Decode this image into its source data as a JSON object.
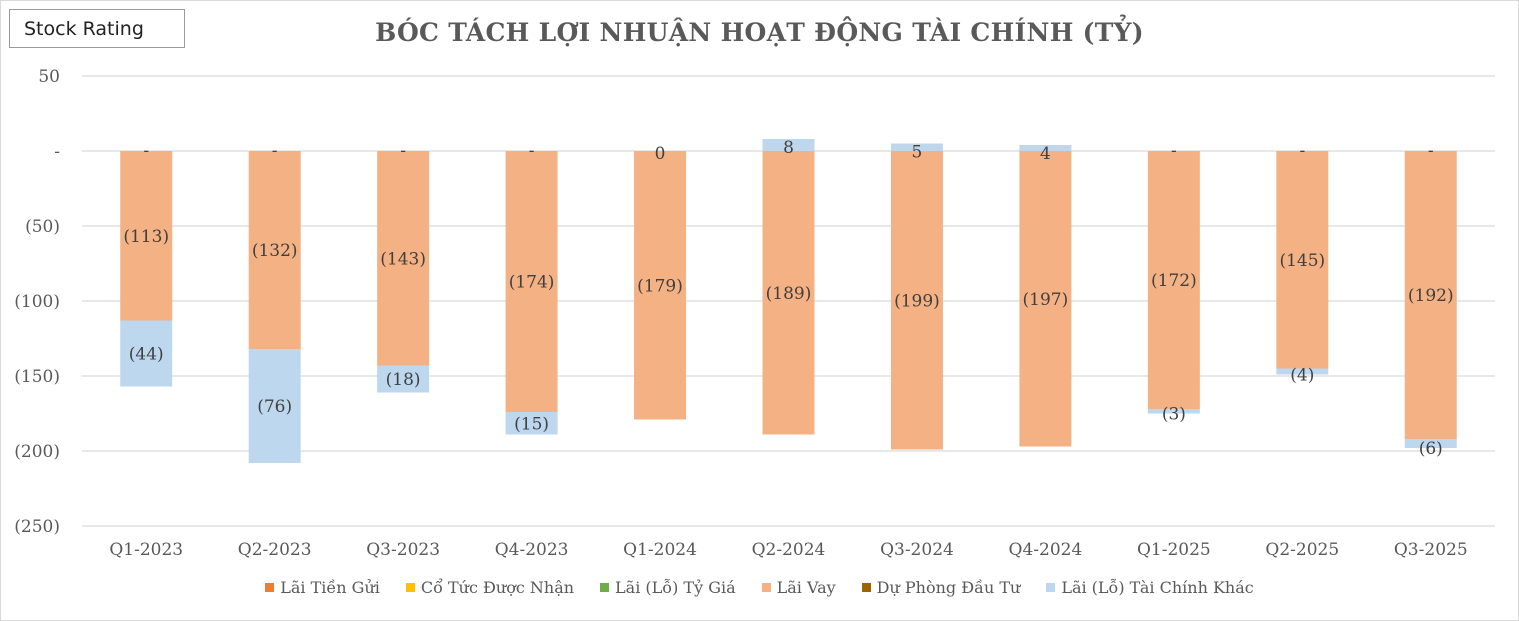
{
  "badge": {
    "label": "Stock Rating"
  },
  "chart_data": {
    "type": "bar",
    "stacked": true,
    "title": "BÓC TÁCH LỢI NHUẬN HOẠT ĐỘNG TÀI CHÍNH (TỶ)",
    "xlabel": "",
    "ylabel": "",
    "ylim": [
      -250,
      50
    ],
    "yticks": [
      50,
      0,
      -50,
      -100,
      -150,
      -200,
      -250
    ],
    "ytick_labels": [
      "50",
      "-",
      "(50)",
      "(100)",
      "(150)",
      "(200)",
      "(250)"
    ],
    "grid": true,
    "legend_position": "bottom",
    "categories": [
      "Q1-2023",
      "Q2-2023",
      "Q3-2023",
      "Q4-2023",
      "Q1-2024",
      "Q2-2024",
      "Q3-2024",
      "Q4-2024",
      "Q1-2025",
      "Q2-2025",
      "Q3-2025"
    ],
    "series": [
      {
        "name": "Lãi Tiền Gửi",
        "color": "#ed7d31",
        "values": [
          0,
          0,
          0,
          0,
          0,
          0,
          0,
          0,
          0,
          0,
          0
        ]
      },
      {
        "name": "Cổ Tức Được Nhận",
        "color": "#ffc000",
        "values": [
          0,
          0,
          0,
          0,
          0,
          0,
          0,
          0,
          0,
          0,
          0
        ]
      },
      {
        "name": "Lãi (Lỗ) Tỷ Giá",
        "color": "#70ad47",
        "values": [
          0,
          0,
          0,
          0,
          0,
          0,
          0,
          0,
          0,
          0,
          0
        ]
      },
      {
        "name": "Lãi Vay",
        "color": "#f4b183",
        "values": [
          -113,
          -132,
          -143,
          -174,
          -179,
          -189,
          -199,
          -197,
          -172,
          -145,
          -192
        ],
        "labels": [
          "(113)",
          "(132)",
          "(143)",
          "(174)",
          "(179)",
          "(189)",
          "(199)",
          "(197)",
          "(172)",
          "(145)",
          "(192)"
        ]
      },
      {
        "name": "Dự Phòng Đầu Tư",
        "color": "#9c6500",
        "values": [
          0,
          0,
          0,
          0,
          0,
          0,
          0,
          0,
          0,
          0,
          0
        ]
      },
      {
        "name": "Lãi (Lỗ) Tài Chính Khác",
        "color": "#bdd7ee",
        "values": [
          -44,
          -76,
          -18,
          -15,
          0,
          8,
          5,
          4,
          -3,
          -4,
          -6
        ],
        "labels": [
          "(44)",
          "(76)",
          "(18)",
          "(15)",
          "0",
          "8",
          "5",
          "4",
          "(3)",
          "(4)",
          "(6)"
        ]
      }
    ],
    "zero_labels": [
      "-",
      "-",
      "-",
      "-",
      "",
      "",
      "",
      "",
      "-",
      "-",
      "-"
    ]
  }
}
